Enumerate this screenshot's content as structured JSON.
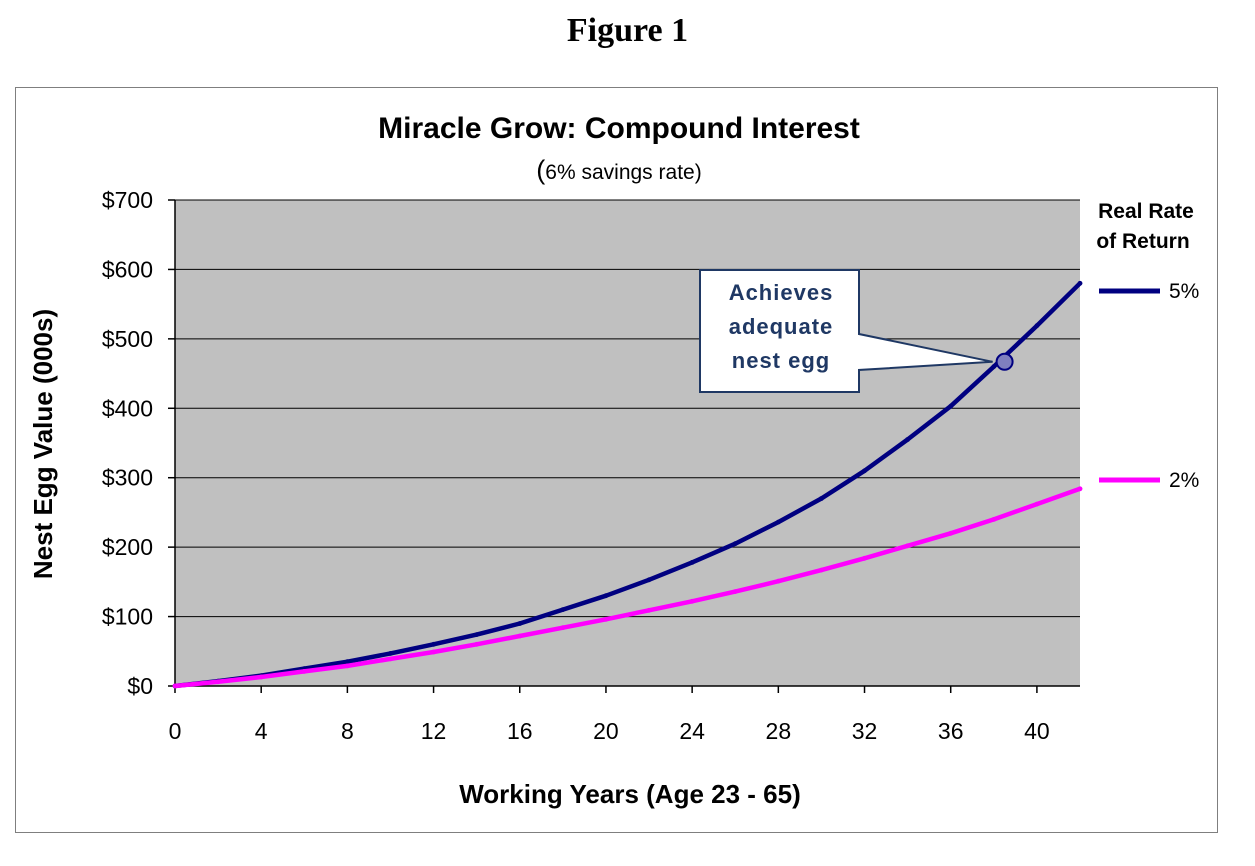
{
  "figure_label": "Figure 1",
  "colors": {
    "plot_background": "#c0c0c0",
    "series_5pct": "#000080",
    "series_2pct": "#ff00ff",
    "callout_border": "#1f3864",
    "callout_text": "#1f3864",
    "marker_fill": "#7f7fbf"
  },
  "chart_data": {
    "type": "line",
    "title": "Miracle Grow:  Compound Interest",
    "subtitle_open": "(",
    "subtitle": "6% savings rate)",
    "xlabel": "Working Years (Age 23 - 65)",
    "ylabel": "Nest Egg Value (000s)",
    "xlim": [
      0,
      42
    ],
    "ylim": [
      0,
      700
    ],
    "x_ticks": [
      0,
      4,
      8,
      12,
      16,
      20,
      24,
      28,
      32,
      36,
      40
    ],
    "y_ticks": [
      0,
      100,
      200,
      300,
      400,
      500,
      600,
      700
    ],
    "y_tick_labels": [
      "$0",
      "$100",
      "$200",
      "$300",
      "$400",
      "$500",
      "$600",
      "$700"
    ],
    "grid": "horizontal",
    "legend_title_line1": "Real Rate",
    "legend_title_line2": "of Return",
    "legend_position": "right",
    "series": [
      {
        "name": "5%",
        "x": [
          0,
          2,
          4,
          6,
          8,
          10,
          12,
          14,
          16,
          18,
          20,
          22,
          24,
          26,
          28,
          30,
          32,
          34,
          36,
          38,
          40,
          42
        ],
        "values": [
          0,
          7,
          15,
          25,
          35,
          47,
          60,
          74,
          90,
          110,
          130,
          153,
          178,
          205,
          236,
          270,
          310,
          355,
          403,
          460,
          519,
          580
        ]
      },
      {
        "name": "2%",
        "x": [
          0,
          2,
          4,
          6,
          8,
          10,
          12,
          14,
          16,
          18,
          20,
          22,
          24,
          26,
          28,
          30,
          32,
          34,
          36,
          38,
          40,
          42
        ],
        "values": [
          0,
          6,
          13,
          21,
          29,
          39,
          49,
          60,
          72,
          84,
          96,
          109,
          122,
          136,
          151,
          167,
          184,
          202,
          220,
          240,
          262,
          284
        ]
      }
    ],
    "annotation": {
      "lines": [
        "Achieves",
        "adequate",
        "nest egg"
      ],
      "point": {
        "x": 38.5,
        "y": 467,
        "series": "5%"
      }
    }
  }
}
